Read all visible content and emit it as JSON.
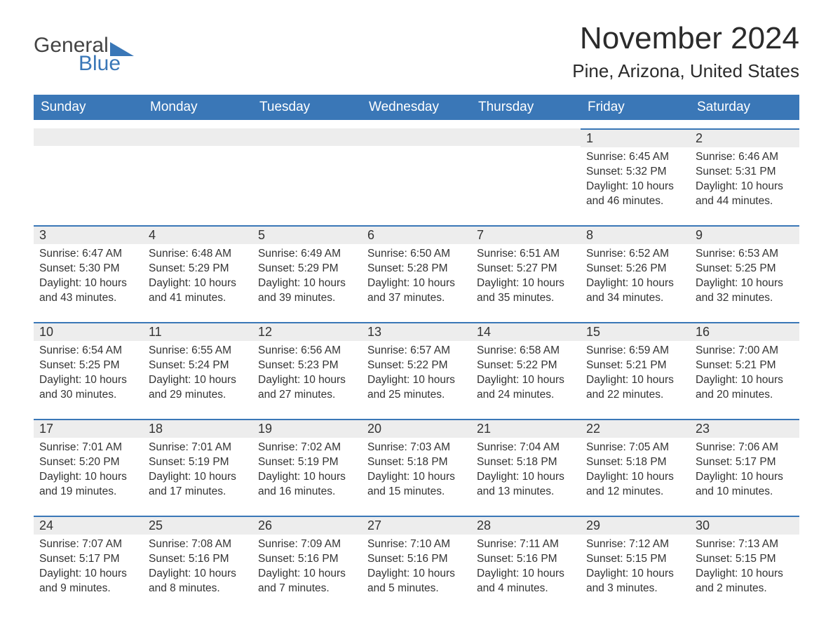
{
  "logo": {
    "text1": "General",
    "text2": "Blue",
    "accent_color": "#3a77b7"
  },
  "title": "November 2024",
  "location": "Pine, Arizona, United States",
  "colors": {
    "header_bg": "#3a77b7",
    "header_text": "#ffffff",
    "cell_top_border": "#3a77b7",
    "daynum_bg": "#ededed",
    "page_bg": "#ffffff",
    "text": "#333333"
  },
  "day_headers": [
    "Sunday",
    "Monday",
    "Tuesday",
    "Wednesday",
    "Thursday",
    "Friday",
    "Saturday"
  ],
  "weeks": [
    [
      {
        "blank": true
      },
      {
        "blank": true
      },
      {
        "blank": true
      },
      {
        "blank": true
      },
      {
        "blank": true
      },
      {
        "day": "1",
        "sunrise": "Sunrise: 6:45 AM",
        "sunset": "Sunset: 5:32 PM",
        "daylight": "Daylight: 10 hours and 46 minutes."
      },
      {
        "day": "2",
        "sunrise": "Sunrise: 6:46 AM",
        "sunset": "Sunset: 5:31 PM",
        "daylight": "Daylight: 10 hours and 44 minutes."
      }
    ],
    [
      {
        "day": "3",
        "sunrise": "Sunrise: 6:47 AM",
        "sunset": "Sunset: 5:30 PM",
        "daylight": "Daylight: 10 hours and 43 minutes."
      },
      {
        "day": "4",
        "sunrise": "Sunrise: 6:48 AM",
        "sunset": "Sunset: 5:29 PM",
        "daylight": "Daylight: 10 hours and 41 minutes."
      },
      {
        "day": "5",
        "sunrise": "Sunrise: 6:49 AM",
        "sunset": "Sunset: 5:29 PM",
        "daylight": "Daylight: 10 hours and 39 minutes."
      },
      {
        "day": "6",
        "sunrise": "Sunrise: 6:50 AM",
        "sunset": "Sunset: 5:28 PM",
        "daylight": "Daylight: 10 hours and 37 minutes."
      },
      {
        "day": "7",
        "sunrise": "Sunrise: 6:51 AM",
        "sunset": "Sunset: 5:27 PM",
        "daylight": "Daylight: 10 hours and 35 minutes."
      },
      {
        "day": "8",
        "sunrise": "Sunrise: 6:52 AM",
        "sunset": "Sunset: 5:26 PM",
        "daylight": "Daylight: 10 hours and 34 minutes."
      },
      {
        "day": "9",
        "sunrise": "Sunrise: 6:53 AM",
        "sunset": "Sunset: 5:25 PM",
        "daylight": "Daylight: 10 hours and 32 minutes."
      }
    ],
    [
      {
        "day": "10",
        "sunrise": "Sunrise: 6:54 AM",
        "sunset": "Sunset: 5:25 PM",
        "daylight": "Daylight: 10 hours and 30 minutes."
      },
      {
        "day": "11",
        "sunrise": "Sunrise: 6:55 AM",
        "sunset": "Sunset: 5:24 PM",
        "daylight": "Daylight: 10 hours and 29 minutes."
      },
      {
        "day": "12",
        "sunrise": "Sunrise: 6:56 AM",
        "sunset": "Sunset: 5:23 PM",
        "daylight": "Daylight: 10 hours and 27 minutes."
      },
      {
        "day": "13",
        "sunrise": "Sunrise: 6:57 AM",
        "sunset": "Sunset: 5:22 PM",
        "daylight": "Daylight: 10 hours and 25 minutes."
      },
      {
        "day": "14",
        "sunrise": "Sunrise: 6:58 AM",
        "sunset": "Sunset: 5:22 PM",
        "daylight": "Daylight: 10 hours and 24 minutes."
      },
      {
        "day": "15",
        "sunrise": "Sunrise: 6:59 AM",
        "sunset": "Sunset: 5:21 PM",
        "daylight": "Daylight: 10 hours and 22 minutes."
      },
      {
        "day": "16",
        "sunrise": "Sunrise: 7:00 AM",
        "sunset": "Sunset: 5:21 PM",
        "daylight": "Daylight: 10 hours and 20 minutes."
      }
    ],
    [
      {
        "day": "17",
        "sunrise": "Sunrise: 7:01 AM",
        "sunset": "Sunset: 5:20 PM",
        "daylight": "Daylight: 10 hours and 19 minutes."
      },
      {
        "day": "18",
        "sunrise": "Sunrise: 7:01 AM",
        "sunset": "Sunset: 5:19 PM",
        "daylight": "Daylight: 10 hours and 17 minutes."
      },
      {
        "day": "19",
        "sunrise": "Sunrise: 7:02 AM",
        "sunset": "Sunset: 5:19 PM",
        "daylight": "Daylight: 10 hours and 16 minutes."
      },
      {
        "day": "20",
        "sunrise": "Sunrise: 7:03 AM",
        "sunset": "Sunset: 5:18 PM",
        "daylight": "Daylight: 10 hours and 15 minutes."
      },
      {
        "day": "21",
        "sunrise": "Sunrise: 7:04 AM",
        "sunset": "Sunset: 5:18 PM",
        "daylight": "Daylight: 10 hours and 13 minutes."
      },
      {
        "day": "22",
        "sunrise": "Sunrise: 7:05 AM",
        "sunset": "Sunset: 5:18 PM",
        "daylight": "Daylight: 10 hours and 12 minutes."
      },
      {
        "day": "23",
        "sunrise": "Sunrise: 7:06 AM",
        "sunset": "Sunset: 5:17 PM",
        "daylight": "Daylight: 10 hours and 10 minutes."
      }
    ],
    [
      {
        "day": "24",
        "sunrise": "Sunrise: 7:07 AM",
        "sunset": "Sunset: 5:17 PM",
        "daylight": "Daylight: 10 hours and 9 minutes."
      },
      {
        "day": "25",
        "sunrise": "Sunrise: 7:08 AM",
        "sunset": "Sunset: 5:16 PM",
        "daylight": "Daylight: 10 hours and 8 minutes."
      },
      {
        "day": "26",
        "sunrise": "Sunrise: 7:09 AM",
        "sunset": "Sunset: 5:16 PM",
        "daylight": "Daylight: 10 hours and 7 minutes."
      },
      {
        "day": "27",
        "sunrise": "Sunrise: 7:10 AM",
        "sunset": "Sunset: 5:16 PM",
        "daylight": "Daylight: 10 hours and 5 minutes."
      },
      {
        "day": "28",
        "sunrise": "Sunrise: 7:11 AM",
        "sunset": "Sunset: 5:16 PM",
        "daylight": "Daylight: 10 hours and 4 minutes."
      },
      {
        "day": "29",
        "sunrise": "Sunrise: 7:12 AM",
        "sunset": "Sunset: 5:15 PM",
        "daylight": "Daylight: 10 hours and 3 minutes."
      },
      {
        "day": "30",
        "sunrise": "Sunrise: 7:13 AM",
        "sunset": "Sunset: 5:15 PM",
        "daylight": "Daylight: 10 hours and 2 minutes."
      }
    ]
  ]
}
